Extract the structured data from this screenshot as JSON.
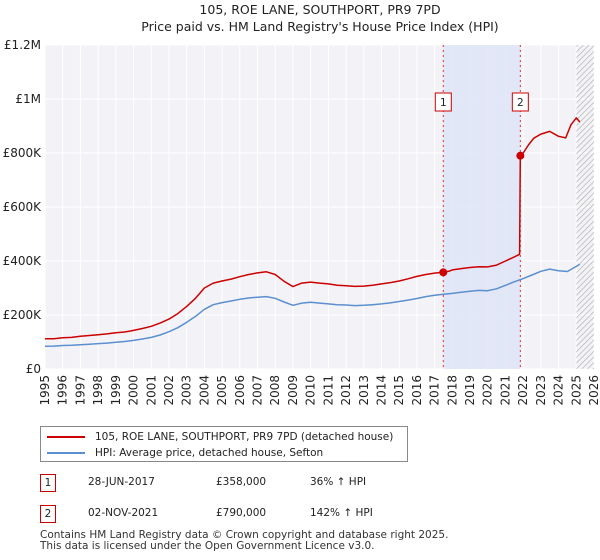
{
  "chart_data": {
    "type": "line",
    "title": "105, ROE LANE, SOUTHPORT, PR9 7PD",
    "subtitle": "Price paid vs. HM Land Registry's House Price Index (HPI)",
    "xlabel": "",
    "ylabel": "",
    "xlim": [
      1995.0,
      2026.0
    ],
    "ylim": [
      0,
      1200000
    ],
    "y_ticks": [
      0,
      200000,
      400000,
      600000,
      800000,
      1000000,
      1200000
    ],
    "y_tick_labels": [
      "£0",
      "£200K",
      "£400K",
      "£600K",
      "£800K",
      "£1M",
      "£1.2M"
    ],
    "x_ticks": [
      1995,
      1996,
      1997,
      1998,
      1999,
      2000,
      2001,
      2002,
      2003,
      2004,
      2005,
      2006,
      2007,
      2008,
      2009,
      2010,
      2011,
      2012,
      2013,
      2014,
      2015,
      2016,
      2017,
      2018,
      2019,
      2020,
      2021,
      2022,
      2023,
      2024,
      2025,
      2026
    ],
    "x_tick_labels": [
      "1995",
      "1996",
      "1997",
      "1998",
      "1999",
      "2000",
      "2001",
      "2002",
      "2003",
      "2004",
      "2005",
      "2006",
      "2007",
      "2008",
      "2009",
      "2010",
      "2011",
      "2012",
      "2013",
      "2014",
      "2015",
      "2016",
      "2017",
      "2018",
      "2019",
      "2020",
      "2021",
      "2022",
      "2023",
      "2024",
      "2025",
      "2026"
    ],
    "grid": true,
    "shaded_range": [
      2017.49,
      2021.84
    ],
    "hatched_from": 2025.0,
    "series": [
      {
        "name": "105, ROE LANE, SOUTHPORT, PR9 7PD (detached house)",
        "color": "#cc0000",
        "x": [
          1995.0,
          1995.5,
          1996.0,
          1996.5,
          1997.0,
          1997.5,
          1998.0,
          1998.5,
          1999.0,
          1999.5,
          2000.0,
          2000.5,
          2001.0,
          2001.5,
          2002.0,
          2002.5,
          2003.0,
          2003.5,
          2004.0,
          2004.5,
          2005.0,
          2005.5,
          2006.0,
          2006.5,
          2007.0,
          2007.5,
          2008.0,
          2008.5,
          2009.0,
          2009.5,
          2010.0,
          2010.5,
          2011.0,
          2011.5,
          2012.0,
          2012.5,
          2013.0,
          2013.5,
          2014.0,
          2014.5,
          2015.0,
          2015.5,
          2016.0,
          2016.5,
          2017.0,
          2017.49,
          2017.8,
          2018.0,
          2018.5,
          2019.0,
          2019.5,
          2020.0,
          2020.5,
          2021.0,
          2021.5,
          2021.8,
          2021.84,
          2022.0,
          2022.3,
          2022.6,
          2023.0,
          2023.5,
          2024.0,
          2024.4,
          2024.7,
          2025.0,
          2025.2
        ],
        "values": [
          112000,
          112000,
          116000,
          117000,
          121000,
          124000,
          127000,
          130000,
          134000,
          137000,
          143000,
          150000,
          158000,
          170000,
          185000,
          205000,
          232000,
          262000,
          300000,
          318000,
          326000,
          333000,
          342000,
          350000,
          356000,
          360000,
          350000,
          325000,
          305000,
          318000,
          322000,
          318000,
          315000,
          310000,
          308000,
          306000,
          307000,
          310000,
          315000,
          320000,
          326000,
          334000,
          343000,
          350000,
          355000,
          358000,
          362000,
          367000,
          372000,
          376000,
          379000,
          378000,
          385000,
          400000,
          415000,
          425000,
          790000,
          800000,
          830000,
          855000,
          870000,
          880000,
          862000,
          856000,
          905000,
          930000,
          915000
        ]
      },
      {
        "name": "HPI: Average price, detached house, Sefton",
        "color": "#5b8fd0",
        "x": [
          1995.0,
          1995.5,
          1996.0,
          1996.5,
          1997.0,
          1997.5,
          1998.0,
          1998.5,
          1999.0,
          1999.5,
          2000.0,
          2000.5,
          2001.0,
          2001.5,
          2002.0,
          2002.5,
          2003.0,
          2003.5,
          2004.0,
          2004.5,
          2005.0,
          2005.5,
          2006.0,
          2006.5,
          2007.0,
          2007.5,
          2008.0,
          2008.5,
          2009.0,
          2009.5,
          2010.0,
          2010.5,
          2011.0,
          2011.5,
          2012.0,
          2012.5,
          2013.0,
          2013.5,
          2014.0,
          2014.5,
          2015.0,
          2015.5,
          2016.0,
          2016.5,
          2017.0,
          2017.5,
          2018.0,
          2018.5,
          2019.0,
          2019.5,
          2020.0,
          2020.5,
          2021.0,
          2021.5,
          2022.0,
          2022.5,
          2023.0,
          2023.5,
          2024.0,
          2024.5,
          2025.0,
          2025.2
        ],
        "values": [
          84000,
          85000,
          87000,
          88000,
          90000,
          92000,
          94000,
          96000,
          99000,
          102000,
          106000,
          111000,
          117000,
          126000,
          138000,
          153000,
          173000,
          195000,
          221000,
          238000,
          246000,
          252000,
          258000,
          263000,
          266000,
          268000,
          262000,
          248000,
          236000,
          244000,
          247000,
          244000,
          241000,
          238000,
          237000,
          235000,
          236000,
          238000,
          241000,
          245000,
          250000,
          255000,
          261000,
          268000,
          273000,
          277000,
          280000,
          284000,
          288000,
          291000,
          290000,
          297000,
          310000,
          323000,
          335000,
          348000,
          362000,
          370000,
          364000,
          361000,
          380000,
          388000
        ]
      }
    ],
    "transactions": [
      {
        "label": "1",
        "x": 2017.49,
        "value": 358000,
        "date": "28-JUN-2017",
        "price": "£358,000",
        "hpi": "36% ↑ HPI"
      },
      {
        "label": "2",
        "x": 2021.84,
        "value": 790000,
        "date": "02-NOV-2021",
        "price": "£790,000",
        "hpi": "142% ↑ HPI"
      }
    ]
  },
  "footer": {
    "line1": "Contains HM Land Registry data © Crown copyright and database right 2025.",
    "line2": "This data is licensed under the Open Government Licence v3.0."
  }
}
